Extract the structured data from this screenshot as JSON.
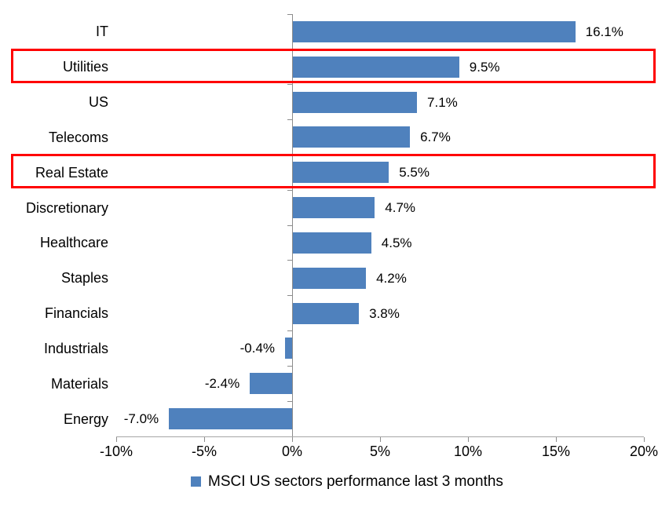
{
  "chart_data": {
    "type": "bar",
    "orientation": "horizontal",
    "categories": [
      "IT",
      "Utilities",
      "US",
      "Telecoms",
      "Real Estate",
      "Discretionary",
      "Healthcare",
      "Staples",
      "Financials",
      "Industrials",
      "Materials",
      "Energy"
    ],
    "values": [
      16.1,
      9.5,
      7.1,
      6.7,
      5.5,
      4.7,
      4.5,
      4.2,
      3.8,
      -0.4,
      -2.4,
      -7.0
    ],
    "value_labels": [
      "16.1%",
      "9.5%",
      "7.1%",
      "6.7%",
      "5.5%",
      "4.7%",
      "4.5%",
      "4.2%",
      "3.8%",
      "-0.4%",
      "-2.4%",
      "-7.0%"
    ],
    "x_ticks": [
      "-10%",
      "-5%",
      "0%",
      "5%",
      "10%",
      "15%",
      "20%"
    ],
    "x_tick_values": [
      -10,
      -5,
      0,
      5,
      10,
      15,
      20
    ],
    "xlim": [
      -10,
      20
    ],
    "grid": false,
    "legend": "MSCI US sectors performance last 3 months",
    "legend_position": "bottom",
    "bar_color": "#4F81BD",
    "highlight_color": "#FF0000",
    "axis_color": "#A6A6A6",
    "tick_color": "#8C8C8C",
    "highlighted_categories": [
      "Utilities",
      "Real Estate"
    ]
  }
}
